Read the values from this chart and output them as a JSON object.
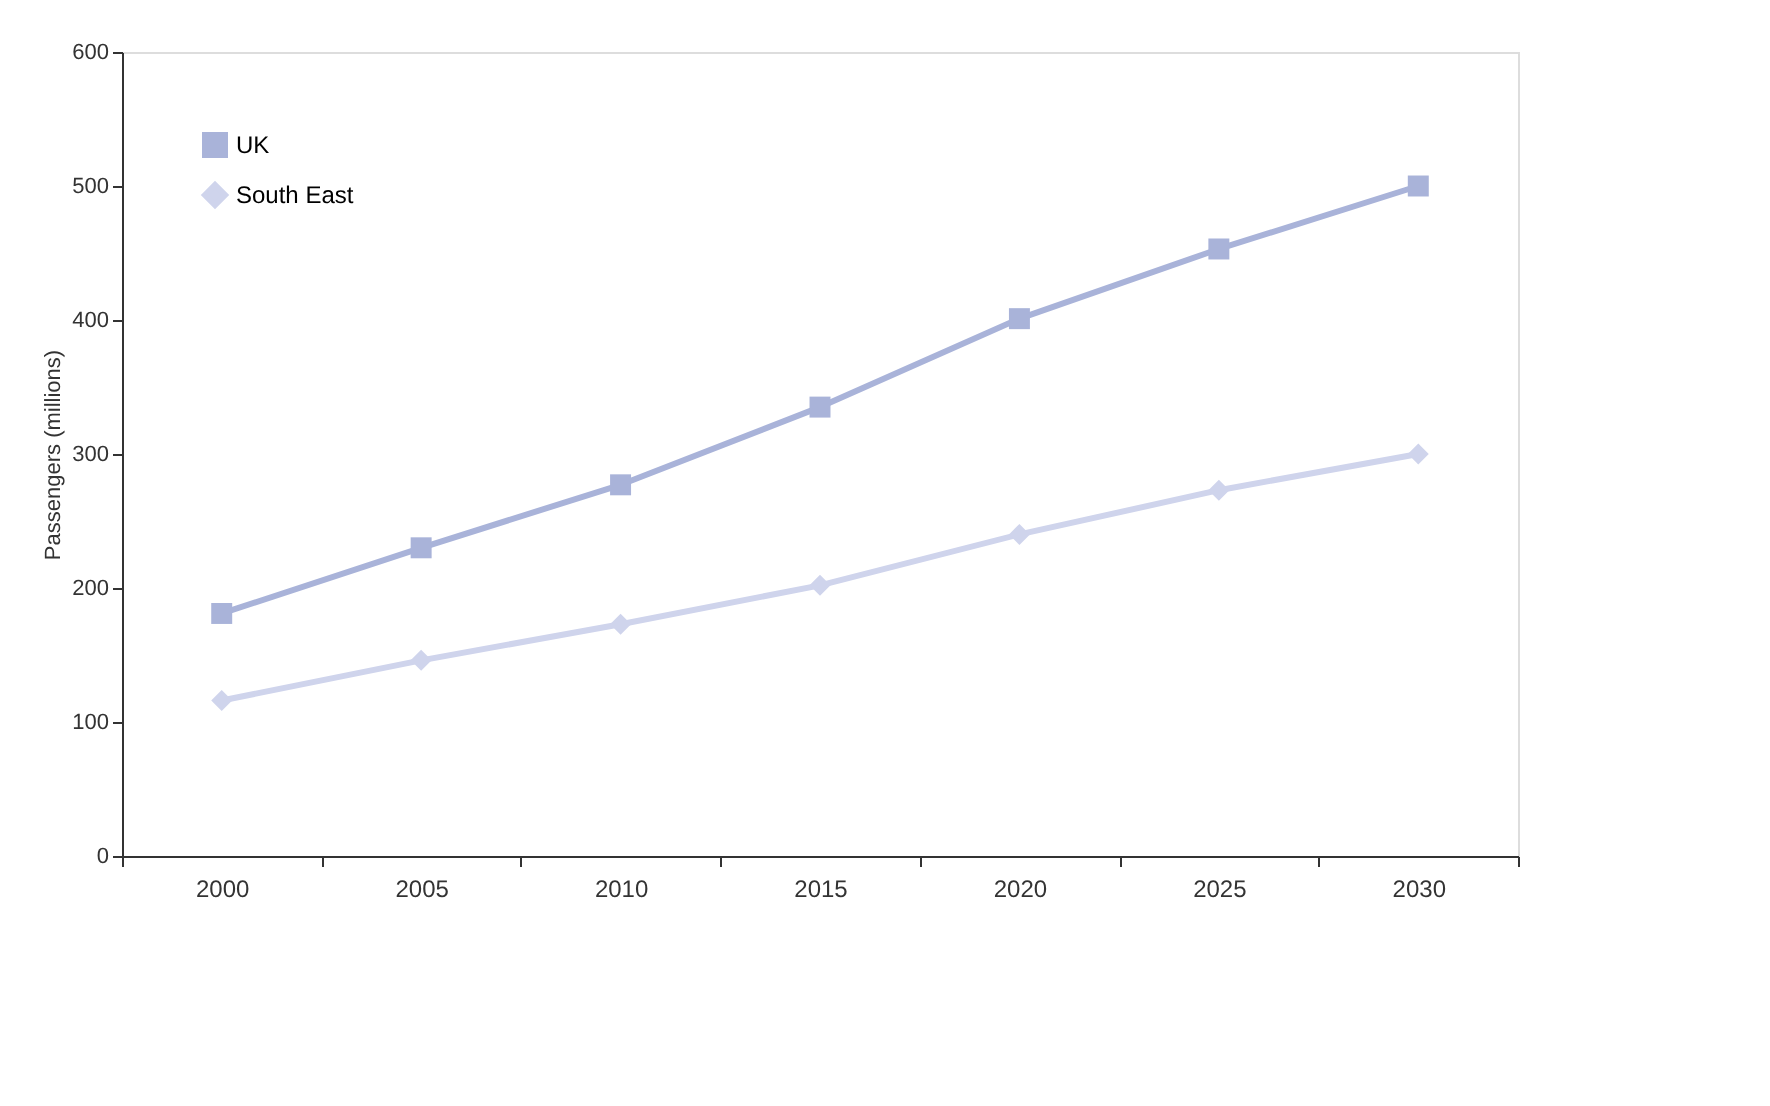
{
  "chart_data": {
    "type": "line",
    "ylabel": "Passengers (millions)",
    "categories": [
      "2000",
      "2005",
      "2010",
      "2015",
      "2020",
      "2025",
      "2030"
    ],
    "series": [
      {
        "name": "UK",
        "color": "#a9b3d9",
        "marker": "square",
        "values": [
          181,
          230,
          277,
          335,
          401,
          453,
          500
        ]
      },
      {
        "name": "South East",
        "color": "#cfd4ec",
        "marker": "diamond",
        "values": [
          116,
          146,
          173,
          202,
          240,
          273,
          300
        ]
      }
    ],
    "ylim": [
      0,
      600
    ],
    "yticks": [
      0,
      100,
      200,
      300,
      400,
      500,
      600
    ],
    "grid": false,
    "legend": "top left"
  }
}
